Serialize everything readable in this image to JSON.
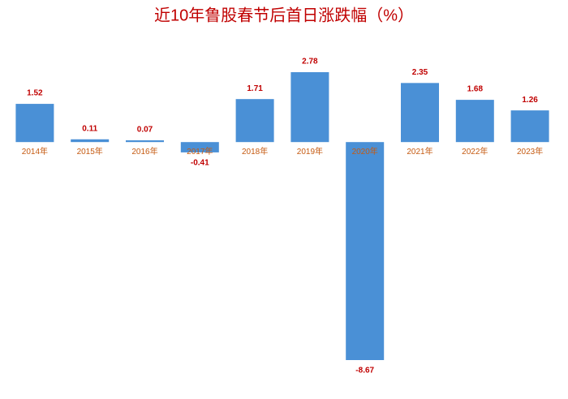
{
  "chart_data": {
    "type": "bar",
    "title": "近10年鲁股春节后首日涨跌幅（%）",
    "categories": [
      "2014年",
      "2015年",
      "2016年",
      "2017年",
      "2018年",
      "2019年",
      "2020年",
      "2021年",
      "2022年",
      "2023年"
    ],
    "values": [
      1.52,
      0.11,
      0.07,
      -0.41,
      1.71,
      2.78,
      -8.67,
      2.35,
      1.68,
      1.26
    ],
    "color": "#4a90d6",
    "title_color": "#c00000",
    "label_color": "#c00000",
    "category_color": "#c55a11"
  }
}
